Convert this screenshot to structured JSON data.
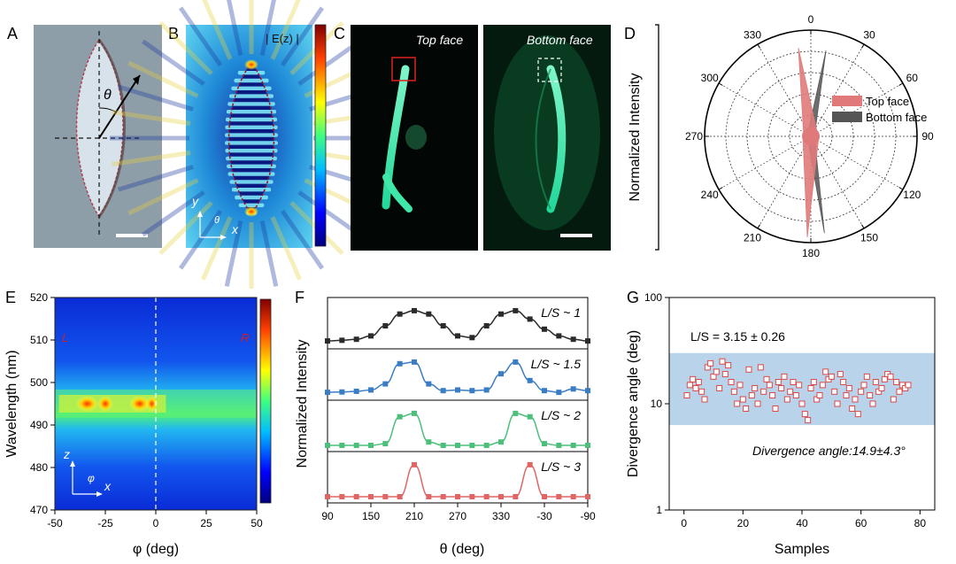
{
  "panels": {
    "A": {
      "label": "A",
      "theta": "θ"
    },
    "B": {
      "label": "B",
      "colorbar_title": "| E(z) |",
      "axis_y": "y",
      "axis_x": "x",
      "axis_theta": "θ"
    },
    "C": {
      "label": "C",
      "left_caption": "Top face",
      "right_caption": "Bottom face"
    },
    "D": {
      "label": "D",
      "ylabel": "Normalized Intensity"
    },
    "E": {
      "label": "E",
      "ylabel": "Wavelength (nm)",
      "xlabel": "φ (deg)",
      "axis_z": "z",
      "axis_x": "x",
      "axis_phi": "φ",
      "marker_left": "L",
      "marker_right": "R"
    },
    "F": {
      "label": "F",
      "ylabel": "Normalized Intensity",
      "xlabel": "θ (deg)"
    },
    "G": {
      "label": "G",
      "ylabel": "Divergence angle (deg)",
      "xlabel": "Samples",
      "annotation": "L/S = 3.15 ± 0.26",
      "band_label": "Divergence angle:14.9±4.3°"
    }
  },
  "colors": {
    "top_face": "#e07a7a",
    "bottom_face": "#555555",
    "band": "#b9d3ea",
    "green": "#2ee8a0",
    "series_black": "#2b2b2b",
    "series_blue": "#3b7dc4",
    "series_green": "#4cbf7a",
    "series_red": "#e06666"
  },
  "chart_data": [
    {
      "id": "D",
      "type": "polar",
      "ylabel": "Normalized Intensity",
      "angle_ticks": [
        "0",
        "30",
        "60",
        "90",
        "120",
        "150",
        "180",
        "210",
        "240",
        "270",
        "300",
        "330"
      ],
      "legend": {
        "placement": "right",
        "entries": [
          "Top face",
          "Bottom face"
        ]
      },
      "series": [
        {
          "name": "Top face",
          "lobes_deg": [
            352,
            182
          ],
          "peak": 1.0
        },
        {
          "name": "Bottom face",
          "lobes_deg": [
            10,
            172
          ],
          "peak": 1.0
        }
      ]
    },
    {
      "id": "E",
      "type": "heatmap",
      "xlabel": "φ (deg)",
      "ylabel": "Wavelength (nm)",
      "xlim": [
        -50,
        50
      ],
      "ylim": [
        470,
        520
      ],
      "x_ticks": [
        "-50",
        "-25",
        "0",
        "25",
        "50"
      ],
      "y_ticks": [
        "470",
        "480",
        "490",
        "500",
        "510",
        "520"
      ],
      "peak_wavelength": 495
    },
    {
      "id": "F",
      "type": "line",
      "xlabel": "θ (deg)",
      "ylabel": "Normalized Intensity",
      "x_ticks": [
        "90",
        "150",
        "210",
        "270",
        "330",
        "-30",
        "-90"
      ],
      "x": [
        90,
        110,
        130,
        150,
        170,
        190,
        210,
        230,
        250,
        270,
        290,
        310,
        330,
        350,
        370,
        390,
        410,
        430,
        450
      ],
      "series": [
        {
          "name": "L/S ~ 1",
          "color": "#2b2b2b",
          "values": [
            0.05,
            0.07,
            0.1,
            0.2,
            0.5,
            0.85,
            0.95,
            0.85,
            0.5,
            0.2,
            0.15,
            0.5,
            0.85,
            0.95,
            0.7,
            0.4,
            0.2,
            0.1,
            0.05
          ]
        },
        {
          "name": "L/S ~ 1.5",
          "color": "#3b7dc4",
          "values": [
            0.05,
            0.06,
            0.08,
            0.12,
            0.3,
            0.9,
            0.95,
            0.3,
            0.1,
            0.12,
            0.1,
            0.12,
            0.6,
            0.95,
            0.4,
            0.1,
            0.05,
            0.15,
            0.1
          ]
        },
        {
          "name": "L/S ~ 2",
          "color": "#4cbf7a",
          "values": [
            0.0,
            0.0,
            0.0,
            0.0,
            0.05,
            0.85,
            0.95,
            0.1,
            0.0,
            0.0,
            0.0,
            0.0,
            0.1,
            0.95,
            0.85,
            0.05,
            0.0,
            0.0,
            0.0
          ]
        },
        {
          "name": "L/S ~ 3",
          "color": "#e06666",
          "values": [
            0.0,
            0.0,
            0.0,
            0.0,
            0.0,
            0.0,
            0.95,
            0.0,
            0.0,
            0.0,
            0.0,
            0.0,
            0.0,
            0.0,
            0.95,
            0.0,
            0.0,
            0.0,
            0.0
          ]
        }
      ]
    },
    {
      "id": "G",
      "type": "scatter",
      "xlabel": "Samples",
      "ylabel": "Divergence angle (deg)",
      "xlim": [
        -5,
        85
      ],
      "ylim": [
        1,
        100
      ],
      "yscale": "log",
      "x_ticks": [
        "0",
        "20",
        "40",
        "60",
        "80"
      ],
      "y_ticks": [
        "1",
        "10",
        "100"
      ],
      "band": [
        6.3,
        30
      ],
      "x": [
        1,
        2,
        3,
        4,
        5,
        6,
        7,
        8,
        9,
        10,
        11,
        12,
        13,
        14,
        15,
        16,
        17,
        18,
        19,
        20,
        21,
        22,
        23,
        24,
        25,
        26,
        27,
        28,
        29,
        30,
        31,
        32,
        33,
        34,
        35,
        36,
        37,
        38,
        39,
        40,
        41,
        42,
        43,
        44,
        45,
        46,
        47,
        48,
        49,
        50,
        51,
        52,
        53,
        54,
        55,
        56,
        57,
        58,
        59,
        60,
        61,
        62,
        63,
        64,
        65,
        66,
        67,
        68,
        69,
        70,
        71,
        72,
        73,
        74,
        75,
        76
      ],
      "values": [
        12,
        15,
        17,
        14,
        16,
        13,
        11,
        22,
        24,
        18,
        20,
        14,
        25,
        19,
        23,
        16,
        13,
        10,
        15,
        11,
        9,
        21,
        12,
        14,
        10,
        22,
        13,
        17,
        15,
        12,
        9,
        16,
        14,
        18,
        11,
        13,
        16,
        12,
        15,
        10,
        8,
        7,
        14,
        16,
        11,
        12,
        15,
        20,
        17,
        18,
        13,
        10,
        19,
        16,
        12,
        14,
        9,
        11,
        8,
        13,
        15,
        18,
        12,
        10,
        16,
        13,
        14,
        17,
        19,
        18,
        11,
        16,
        13,
        15,
        14,
        15
      ]
    }
  ]
}
